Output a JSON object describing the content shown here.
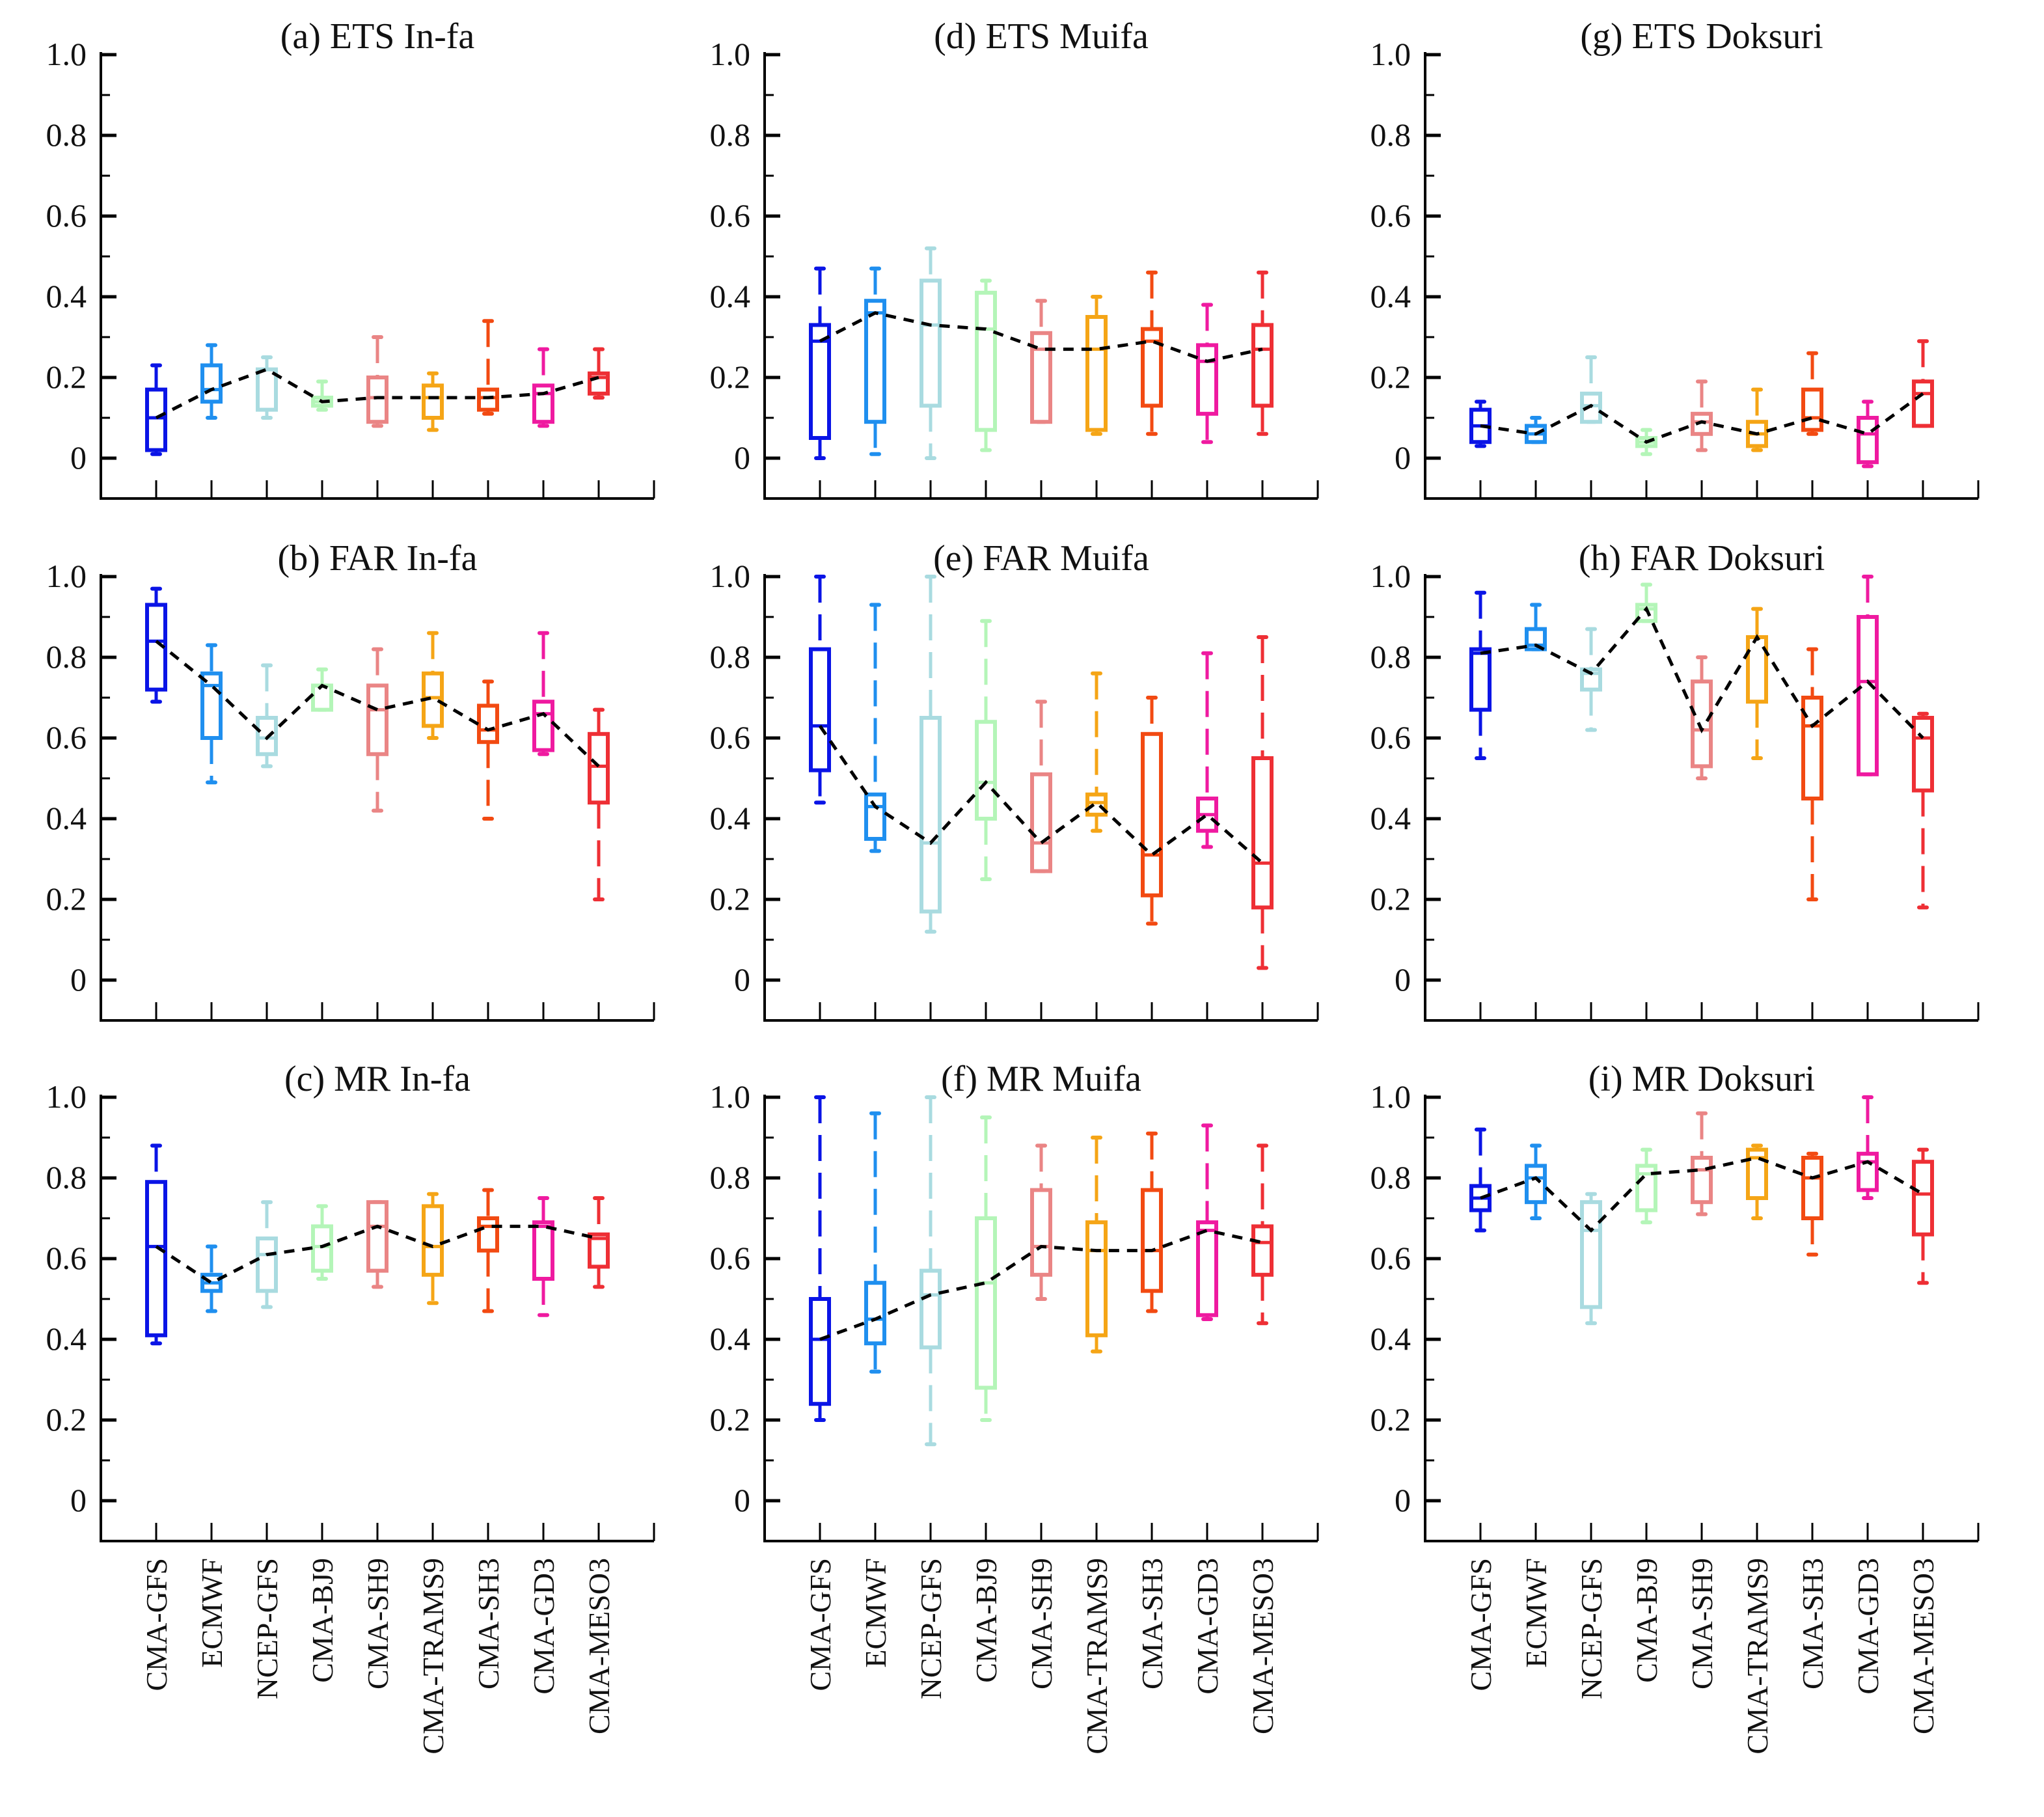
{
  "chart_data": {
    "type": "box",
    "layout": "3x3 grid of box plots with dashed median line",
    "categories": [
      "CMA-GFS",
      "ECMWF",
      "NCEP-GFS",
      "CMA-BJ9",
      "CMA-SH9",
      "CMA-TRAMS9",
      "CMA-SH3",
      "CMA-GD3",
      "CMA-MESO3"
    ],
    "category_colors": [
      "#0a14e6",
      "#1f8fef",
      "#a9dbe0",
      "#b4f5b8",
      "#ea8585",
      "#f5a516",
      "#f24a12",
      "#ef1aa0",
      "#ee2f35"
    ],
    "median_line": {
      "color": "#000000",
      "style": "dashed"
    },
    "ylim": [
      -0.1,
      1.0
    ],
    "yticks": [
      0,
      0.2,
      0.4,
      0.6,
      0.8,
      1.0
    ],
    "ytick_labels": [
      "0",
      "0.2",
      "0.4",
      "0.6",
      "0.8",
      "1.0"
    ],
    "grid": false,
    "panels": [
      {
        "id": "a",
        "title": "(a) ETS In-fa",
        "metric": "ETS",
        "typhoon": "In-fa",
        "row": 0,
        "col": 0,
        "boxes": [
          {
            "min": 0.01,
            "q1": 0.02,
            "median": 0.1,
            "q3": 0.17,
            "max": 0.23
          },
          {
            "min": 0.1,
            "q1": 0.14,
            "median": 0.17,
            "q3": 0.23,
            "max": 0.28
          },
          {
            "min": 0.1,
            "q1": 0.12,
            "median": 0.22,
            "q3": 0.22,
            "max": 0.25
          },
          {
            "min": 0.12,
            "q1": 0.13,
            "median": 0.14,
            "q3": 0.15,
            "max": 0.19
          },
          {
            "min": 0.08,
            "q1": 0.09,
            "median": 0.15,
            "q3": 0.2,
            "max": 0.3
          },
          {
            "min": 0.07,
            "q1": 0.1,
            "median": 0.15,
            "q3": 0.18,
            "max": 0.21
          },
          {
            "min": 0.11,
            "q1": 0.12,
            "median": 0.15,
            "q3": 0.17,
            "max": 0.34
          },
          {
            "min": 0.08,
            "q1": 0.09,
            "median": 0.16,
            "q3": 0.18,
            "max": 0.27
          },
          {
            "min": 0.15,
            "q1": 0.16,
            "median": 0.2,
            "q3": 0.21,
            "max": 0.27
          }
        ]
      },
      {
        "id": "b",
        "title": "(b) FAR In-fa",
        "metric": "FAR",
        "typhoon": "In-fa",
        "row": 1,
        "col": 0,
        "boxes": [
          {
            "min": 0.69,
            "q1": 0.72,
            "median": 0.84,
            "q3": 0.93,
            "max": 0.97
          },
          {
            "min": 0.49,
            "q1": 0.6,
            "median": 0.73,
            "q3": 0.76,
            "max": 0.83
          },
          {
            "min": 0.53,
            "q1": 0.56,
            "median": 0.6,
            "q3": 0.65,
            "max": 0.78
          },
          {
            "min": 0.67,
            "q1": 0.67,
            "median": 0.73,
            "q3": 0.73,
            "max": 0.77
          },
          {
            "min": 0.42,
            "q1": 0.56,
            "median": 0.67,
            "q3": 0.73,
            "max": 0.82
          },
          {
            "min": 0.6,
            "q1": 0.63,
            "median": 0.7,
            "q3": 0.76,
            "max": 0.86
          },
          {
            "min": 0.4,
            "q1": 0.59,
            "median": 0.62,
            "q3": 0.68,
            "max": 0.74
          },
          {
            "min": 0.56,
            "q1": 0.57,
            "median": 0.66,
            "q3": 0.69,
            "max": 0.86
          },
          {
            "min": 0.2,
            "q1": 0.44,
            "median": 0.53,
            "q3": 0.61,
            "max": 0.67
          }
        ]
      },
      {
        "id": "c",
        "title": "(c) MR In-fa",
        "metric": "MR",
        "typhoon": "In-fa",
        "row": 2,
        "col": 0,
        "boxes": [
          {
            "min": 0.39,
            "q1": 0.41,
            "median": 0.63,
            "q3": 0.79,
            "max": 0.88
          },
          {
            "min": 0.47,
            "q1": 0.52,
            "median": 0.54,
            "q3": 0.56,
            "max": 0.63
          },
          {
            "min": 0.48,
            "q1": 0.52,
            "median": 0.61,
            "q3": 0.65,
            "max": 0.74
          },
          {
            "min": 0.55,
            "q1": 0.57,
            "median": 0.63,
            "q3": 0.68,
            "max": 0.73
          },
          {
            "min": 0.53,
            "q1": 0.57,
            "median": 0.68,
            "q3": 0.74,
            "max": 0.74
          },
          {
            "min": 0.49,
            "q1": 0.56,
            "median": 0.63,
            "q3": 0.73,
            "max": 0.76
          },
          {
            "min": 0.47,
            "q1": 0.62,
            "median": 0.68,
            "q3": 0.7,
            "max": 0.77
          },
          {
            "min": 0.46,
            "q1": 0.55,
            "median": 0.68,
            "q3": 0.69,
            "max": 0.75
          },
          {
            "min": 0.53,
            "q1": 0.58,
            "median": 0.65,
            "q3": 0.66,
            "max": 0.75
          }
        ]
      },
      {
        "id": "d",
        "title": "(d) ETS Muifa",
        "metric": "ETS",
        "typhoon": "Muifa",
        "row": 0,
        "col": 1,
        "boxes": [
          {
            "min": 0.0,
            "q1": 0.05,
            "median": 0.29,
            "q3": 0.33,
            "max": 0.47
          },
          {
            "min": 0.01,
            "q1": 0.09,
            "median": 0.36,
            "q3": 0.39,
            "max": 0.47
          },
          {
            "min": 0.0,
            "q1": 0.13,
            "median": 0.33,
            "q3": 0.44,
            "max": 0.52
          },
          {
            "min": 0.02,
            "q1": 0.07,
            "median": 0.32,
            "q3": 0.41,
            "max": 0.44
          },
          {
            "min": 0.09,
            "q1": 0.09,
            "median": 0.27,
            "q3": 0.31,
            "max": 0.39
          },
          {
            "min": 0.06,
            "q1": 0.07,
            "median": 0.27,
            "q3": 0.35,
            "max": 0.4
          },
          {
            "min": 0.06,
            "q1": 0.13,
            "median": 0.29,
            "q3": 0.32,
            "max": 0.46
          },
          {
            "min": 0.04,
            "q1": 0.11,
            "median": 0.24,
            "q3": 0.28,
            "max": 0.38
          },
          {
            "min": 0.06,
            "q1": 0.13,
            "median": 0.27,
            "q3": 0.33,
            "max": 0.46
          }
        ]
      },
      {
        "id": "e",
        "title": "(e) FAR Muifa",
        "metric": "FAR",
        "typhoon": "Muifa",
        "row": 1,
        "col": 1,
        "boxes": [
          {
            "min": 0.44,
            "q1": 0.52,
            "median": 0.63,
            "q3": 0.82,
            "max": 1.0
          },
          {
            "min": 0.32,
            "q1": 0.35,
            "median": 0.43,
            "q3": 0.46,
            "max": 0.93
          },
          {
            "min": 0.12,
            "q1": 0.17,
            "median": 0.34,
            "q3": 0.65,
            "max": 1.0
          },
          {
            "min": 0.25,
            "q1": 0.4,
            "median": 0.49,
            "q3": 0.64,
            "max": 0.89
          },
          {
            "min": 0.27,
            "q1": 0.27,
            "median": 0.34,
            "q3": 0.51,
            "max": 0.69
          },
          {
            "min": 0.37,
            "q1": 0.41,
            "median": 0.44,
            "q3": 0.46,
            "max": 0.76
          },
          {
            "min": 0.14,
            "q1": 0.21,
            "median": 0.31,
            "q3": 0.61,
            "max": 0.7
          },
          {
            "min": 0.33,
            "q1": 0.37,
            "median": 0.41,
            "q3": 0.45,
            "max": 0.81
          },
          {
            "min": 0.03,
            "q1": 0.18,
            "median": 0.29,
            "q3": 0.55,
            "max": 0.85
          }
        ]
      },
      {
        "id": "f",
        "title": "(f) MR Muifa",
        "metric": "MR",
        "typhoon": "Muifa",
        "row": 2,
        "col": 1,
        "boxes": [
          {
            "min": 0.2,
            "q1": 0.24,
            "median": 0.4,
            "q3": 0.5,
            "max": 1.0
          },
          {
            "min": 0.32,
            "q1": 0.39,
            "median": 0.45,
            "q3": 0.54,
            "max": 0.96
          },
          {
            "min": 0.14,
            "q1": 0.38,
            "median": 0.51,
            "q3": 0.57,
            "max": 1.0
          },
          {
            "min": 0.2,
            "q1": 0.28,
            "median": 0.54,
            "q3": 0.7,
            "max": 0.95
          },
          {
            "min": 0.5,
            "q1": 0.56,
            "median": 0.63,
            "q3": 0.77,
            "max": 0.88
          },
          {
            "min": 0.37,
            "q1": 0.41,
            "median": 0.62,
            "q3": 0.69,
            "max": 0.9
          },
          {
            "min": 0.47,
            "q1": 0.52,
            "median": 0.62,
            "q3": 0.77,
            "max": 0.91
          },
          {
            "min": 0.45,
            "q1": 0.46,
            "median": 0.67,
            "q3": 0.69,
            "max": 0.93
          },
          {
            "min": 0.44,
            "q1": 0.56,
            "median": 0.64,
            "q3": 0.68,
            "max": 0.88
          }
        ]
      },
      {
        "id": "g",
        "title": "(g) ETS Doksuri",
        "metric": "ETS",
        "typhoon": "Doksuri",
        "row": 0,
        "col": 2,
        "boxes": [
          {
            "min": 0.03,
            "q1": 0.04,
            "median": 0.08,
            "q3": 0.12,
            "max": 0.14
          },
          {
            "min": 0.04,
            "q1": 0.04,
            "median": 0.06,
            "q3": 0.08,
            "max": 0.1
          },
          {
            "min": 0.09,
            "q1": 0.09,
            "median": 0.13,
            "q3": 0.16,
            "max": 0.25
          },
          {
            "min": 0.01,
            "q1": 0.03,
            "median": 0.04,
            "q3": 0.05,
            "max": 0.07
          },
          {
            "min": 0.02,
            "q1": 0.06,
            "median": 0.09,
            "q3": 0.11,
            "max": 0.19
          },
          {
            "min": 0.02,
            "q1": 0.03,
            "median": 0.06,
            "q3": 0.09,
            "max": 0.17
          },
          {
            "min": 0.06,
            "q1": 0.07,
            "median": 0.1,
            "q3": 0.17,
            "max": 0.26
          },
          {
            "min": -0.02,
            "q1": -0.01,
            "median": 0.06,
            "q3": 0.1,
            "max": 0.14
          },
          {
            "min": 0.08,
            "q1": 0.08,
            "median": 0.16,
            "q3": 0.19,
            "max": 0.29
          }
        ]
      },
      {
        "id": "h",
        "title": "(h) FAR Doksuri",
        "metric": "FAR",
        "typhoon": "Doksuri",
        "row": 1,
        "col": 2,
        "boxes": [
          {
            "min": 0.55,
            "q1": 0.67,
            "median": 0.81,
            "q3": 0.82,
            "max": 0.96
          },
          {
            "min": 0.82,
            "q1": 0.82,
            "median": 0.83,
            "q3": 0.87,
            "max": 0.93
          },
          {
            "min": 0.62,
            "q1": 0.72,
            "median": 0.76,
            "q3": 0.77,
            "max": 0.87
          },
          {
            "min": 0.89,
            "q1": 0.89,
            "median": 0.92,
            "q3": 0.93,
            "max": 0.98
          },
          {
            "min": 0.5,
            "q1": 0.53,
            "median": 0.62,
            "q3": 0.74,
            "max": 0.8
          },
          {
            "min": 0.55,
            "q1": 0.69,
            "median": 0.85,
            "q3": 0.85,
            "max": 0.92
          },
          {
            "min": 0.2,
            "q1": 0.45,
            "median": 0.63,
            "q3": 0.7,
            "max": 0.82
          },
          {
            "min": 0.51,
            "q1": 0.51,
            "median": 0.74,
            "q3": 0.9,
            "max": 1.0
          },
          {
            "min": 0.18,
            "q1": 0.47,
            "median": 0.6,
            "q3": 0.65,
            "max": 0.66
          }
        ]
      },
      {
        "id": "i",
        "title": "(i) MR Doksuri",
        "metric": "MR",
        "typhoon": "Doksuri",
        "row": 2,
        "col": 2,
        "boxes": [
          {
            "min": 0.67,
            "q1": 0.72,
            "median": 0.75,
            "q3": 0.78,
            "max": 0.92
          },
          {
            "min": 0.7,
            "q1": 0.74,
            "median": 0.8,
            "q3": 0.83,
            "max": 0.88
          },
          {
            "min": 0.44,
            "q1": 0.48,
            "median": 0.67,
            "q3": 0.74,
            "max": 0.76
          },
          {
            "min": 0.69,
            "q1": 0.72,
            "median": 0.81,
            "q3": 0.83,
            "max": 0.87
          },
          {
            "min": 0.71,
            "q1": 0.74,
            "median": 0.82,
            "q3": 0.85,
            "max": 0.96
          },
          {
            "min": 0.7,
            "q1": 0.75,
            "median": 0.85,
            "q3": 0.87,
            "max": 0.88
          },
          {
            "min": 0.61,
            "q1": 0.7,
            "median": 0.8,
            "q3": 0.85,
            "max": 0.86
          },
          {
            "min": 0.75,
            "q1": 0.77,
            "median": 0.84,
            "q3": 0.86,
            "max": 1.0
          },
          {
            "min": 0.54,
            "q1": 0.66,
            "median": 0.76,
            "q3": 0.84,
            "max": 0.87
          }
        ]
      }
    ]
  }
}
